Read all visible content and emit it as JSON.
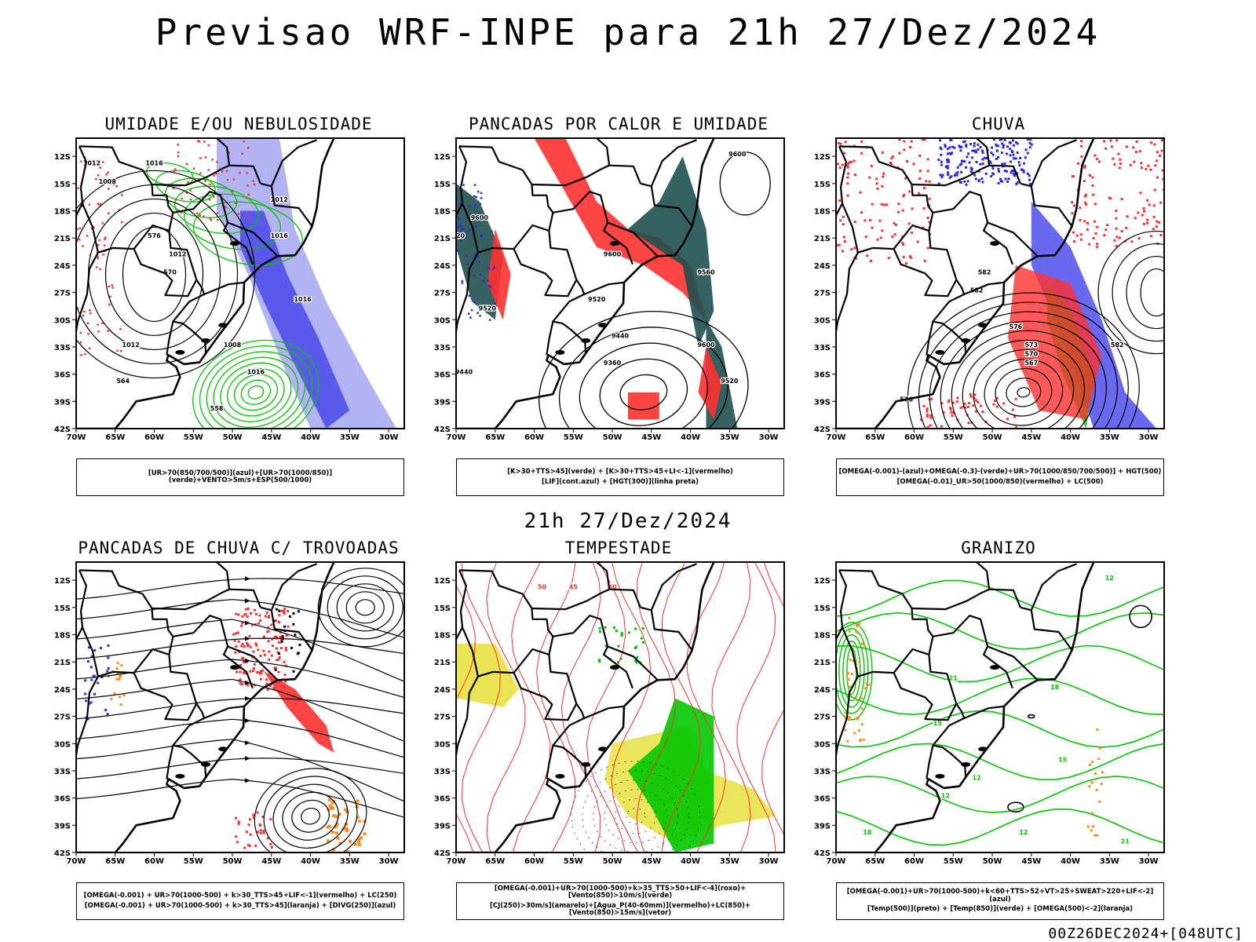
{
  "header": {
    "title": "Previsao WRF-INPE  para 21h 27/Dez/2024",
    "mid_title": "21h 27/Dez/2024"
  },
  "footer": {
    "stamp": "00Z26DEC2024+[048UTC]"
  },
  "axes": {
    "lat_labels": [
      "12S",
      "15S",
      "18S",
      "21S",
      "24S",
      "27S",
      "30S",
      "33S",
      "36S",
      "39S",
      "42S"
    ],
    "lon_labels": [
      "70W",
      "65W",
      "60W",
      "55W",
      "50W",
      "45W",
      "40W",
      "35W",
      "30W"
    ]
  },
  "colors": {
    "blue": "#2a2ae8",
    "lavender": "#9a9af0",
    "green": "#00c800",
    "red": "#ff3030",
    "darkgreen": "#1f5050",
    "orange": "#ff8c1a",
    "yellow": "#e8e040",
    "purple": "#8040a0"
  },
  "panels": [
    {
      "id": "umidade",
      "title": "UMIDADE E/OU NEBULOSIDADE",
      "legend": [
        "[UR>70(850/700/500)](azul)+[UR>70(1000/850)](verde)+VENTO>5m/s+ESP(500/1000)"
      ],
      "contour_labels": [
        "1012",
        "1008",
        "1016",
        "1016",
        "1012",
        "1012",
        "1016",
        "1012",
        "1008",
        "1016",
        "576",
        "570",
        "564",
        "558"
      ]
    },
    {
      "id": "pancadas-calor",
      "title": "PANCADAS POR CALOR E UMIDADE",
      "legend": [
        "[K>30+TTS>45](verde) + [K>30+TTS>45+LI<-1](vermelho)",
        "[LIF](cont.azul) + [HGT(300)](linha preta)"
      ],
      "contour_labels": [
        "9600",
        "9600",
        "9520",
        "9600",
        "9560",
        "9520",
        "9440",
        "9360",
        "9600",
        "9520",
        "9440",
        "9520"
      ]
    },
    {
      "id": "chuva",
      "title": "CHUVA",
      "legend": [
        "[OMEGA(-0.001)-(azul)+OMEGA(-0.3)-(verde)+UR>70(1000/850/700/500)] + HGT(500)",
        "[OMEGA(-0.01)_UR>50(1000/850)(vermelho) + LC(500)"
      ],
      "contour_labels": [
        "582",
        "582",
        "576",
        "573",
        "570",
        "567",
        "576",
        "582"
      ]
    },
    {
      "id": "trovoadas",
      "title": "PANCADAS DE CHUVA C/ TROVOADAS",
      "legend": [
        "[OMEGA(-0.001) + UR>70(1000-500) + k>30_TTS>45+LIF<-1](vermelho) + LC(250)",
        "[OMEGA(-0.001) + UR>70(1000-500) + k>30_TTS>45](laranja) + [DIVG(250)](azul)"
      ],
      "contour_labels": []
    },
    {
      "id": "tempestade",
      "title": "TEMPESTADE",
      "legend": [
        "[OMEGA(-0.001)+UR>70(1000-500)+k>35_TTS>50+LIF<-4](roxo)+[Vento(850)>10m/s](verde)",
        "[CJ(250)>30m/s](amarelo)+[Agua_P(40-60mm)](vermelho)+LC(850)+[Vento(850)>15m/s](vetor)"
      ],
      "contour_labels": [
        "50",
        "45",
        "40"
      ]
    },
    {
      "id": "granizo",
      "title": "GRANIZO",
      "legend": [
        "[OMEGA(-0.001)+UR>70(1000-500)+k<60+TTS>52+VT>25+SWEAT>220+LIF<-2](azul)",
        "[Temp(500)](preto) + [Temp(850)](verde) + [OMEGA(500)<-2](laranja)"
      ],
      "contour_labels": [
        "12",
        "21",
        "18",
        "15",
        "12",
        "15",
        "12",
        "12",
        "21",
        "18"
      ]
    }
  ]
}
